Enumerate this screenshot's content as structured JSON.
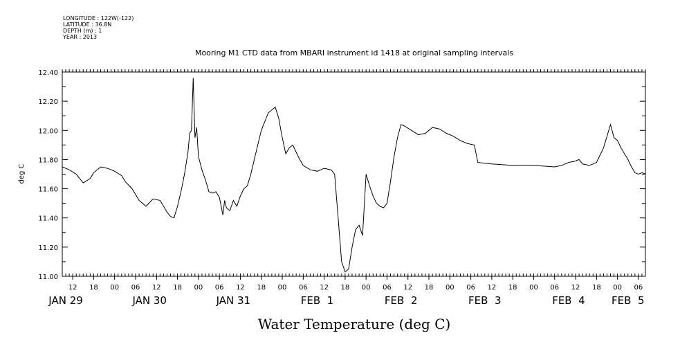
{
  "header": {
    "longitude": "LONGITUDE : 122W(-122)",
    "latitude": "LATITUDE : 36.8N",
    "depth": "DEPTH (m) : 1",
    "year": "YEAR : 2013"
  },
  "chart_data": {
    "type": "line",
    "title": "Mooring M1 CTD data from MBARI instrument id 1418 at original sampling intervals",
    "xlabel": "Water Temperature (deg C)",
    "ylabel": "deg C",
    "ylim": [
      11.0,
      12.4
    ],
    "yticks": [
      "11.00",
      "11.20",
      "11.40",
      "11.60",
      "11.80",
      "12.00",
      "12.20",
      "12.40"
    ],
    "xlim": [
      "2013-01-29T09:00",
      "2013-02-05T08:00"
    ],
    "hour_ticks": [
      {
        "t": "2013-01-29T12:00",
        "label": "12"
      },
      {
        "t": "2013-01-29T18:00",
        "label": "18"
      },
      {
        "t": "2013-01-30T00:00",
        "label": "00"
      },
      {
        "t": "2013-01-30T06:00",
        "label": "06"
      },
      {
        "t": "2013-01-30T12:00",
        "label": "12"
      },
      {
        "t": "2013-01-30T18:00",
        "label": "18"
      },
      {
        "t": "2013-01-31T00:00",
        "label": "00"
      },
      {
        "t": "2013-01-31T06:00",
        "label": "06"
      },
      {
        "t": "2013-01-31T12:00",
        "label": "12"
      },
      {
        "t": "2013-01-31T18:00",
        "label": "18"
      },
      {
        "t": "2013-02-01T00:00",
        "label": "00"
      },
      {
        "t": "2013-02-01T06:00",
        "label": "06"
      },
      {
        "t": "2013-02-01T12:00",
        "label": "12"
      },
      {
        "t": "2013-02-01T18:00",
        "label": "18"
      },
      {
        "t": "2013-02-02T00:00",
        "label": "00"
      },
      {
        "t": "2013-02-02T06:00",
        "label": "06"
      },
      {
        "t": "2013-02-02T12:00",
        "label": "12"
      },
      {
        "t": "2013-02-02T18:00",
        "label": "18"
      },
      {
        "t": "2013-02-03T00:00",
        "label": "00"
      },
      {
        "t": "2013-02-03T06:00",
        "label": "06"
      },
      {
        "t": "2013-02-03T12:00",
        "label": "12"
      },
      {
        "t": "2013-02-03T18:00",
        "label": "18"
      },
      {
        "t": "2013-02-04T00:00",
        "label": "00"
      },
      {
        "t": "2013-02-04T06:00",
        "label": "06"
      },
      {
        "t": "2013-02-04T12:00",
        "label": "12"
      },
      {
        "t": "2013-02-04T18:00",
        "label": "18"
      },
      {
        "t": "2013-02-05T00:00",
        "label": "00"
      },
      {
        "t": "2013-02-05T06:00",
        "label": "06"
      }
    ],
    "day_labels": [
      {
        "label": "JAN 29",
        "t": "2013-01-29T10:00"
      },
      {
        "label": "JAN 30",
        "t": "2013-01-30T10:00"
      },
      {
        "label": "JAN 31",
        "t": "2013-01-31T10:00"
      },
      {
        "label": "FEB  1",
        "t": "2013-02-01T10:00"
      },
      {
        "label": "FEB  2",
        "t": "2013-02-02T10:00"
      },
      {
        "label": "FEB  3",
        "t": "2013-02-03T10:00"
      },
      {
        "label": "FEB  4",
        "t": "2013-02-04T10:00"
      },
      {
        "label": "FEB  5",
        "t": "2013-02-05T03:00"
      }
    ],
    "grid": false,
    "series": [
      {
        "color": "#000000",
        "x": [
          "2013-01-29T09:00",
          "2013-01-29T11:00",
          "2013-01-29T13:00",
          "2013-01-29T14:00",
          "2013-01-29T15:00",
          "2013-01-29T17:00",
          "2013-01-29T18:00",
          "2013-01-29T20:00",
          "2013-01-29T22:00",
          "2013-01-30T00:00",
          "2013-01-30T02:00",
          "2013-01-30T03:00",
          "2013-01-30T05:00",
          "2013-01-30T06:00",
          "2013-01-30T07:00",
          "2013-01-30T09:00",
          "2013-01-30T11:00",
          "2013-01-30T13:00",
          "2013-01-30T14:00",
          "2013-01-30T15:00",
          "2013-01-30T16:00",
          "2013-01-30T17:00",
          "2013-01-30T18:00",
          "2013-01-30T19:00",
          "2013-01-30T20:00",
          "2013-01-30T21:00",
          "2013-01-30T21:30",
          "2013-01-30T22:00",
          "2013-01-30T22:30",
          "2013-01-30T23:00",
          "2013-01-30T23:30",
          "2013-01-31T00:00",
          "2013-01-31T01:00",
          "2013-01-31T02:00",
          "2013-01-31T03:00",
          "2013-01-31T04:00",
          "2013-01-31T05:00",
          "2013-01-31T06:00",
          "2013-01-31T07:00",
          "2013-01-31T07:30",
          "2013-01-31T08:00",
          "2013-01-31T09:00",
          "2013-01-31T10:00",
          "2013-01-31T11:00",
          "2013-01-31T12:00",
          "2013-01-31T13:00",
          "2013-01-31T14:00",
          "2013-01-31T15:00",
          "2013-01-31T16:00",
          "2013-01-31T18:00",
          "2013-01-31T20:00",
          "2013-01-31T22:00",
          "2013-01-31T23:00",
          "2013-02-01T00:00",
          "2013-02-01T01:00",
          "2013-02-01T02:00",
          "2013-02-01T03:00",
          "2013-02-01T04:00",
          "2013-02-01T05:00",
          "2013-02-01T06:00",
          "2013-02-01T08:00",
          "2013-02-01T10:00",
          "2013-02-01T12:00",
          "2013-02-01T14:00",
          "2013-02-01T15:00",
          "2013-02-01T16:00",
          "2013-02-01T17:00",
          "2013-02-01T18:00",
          "2013-02-01T19:00",
          "2013-02-01T20:00",
          "2013-02-01T21:00",
          "2013-02-01T22:00",
          "2013-02-01T23:00",
          "2013-02-02T00:00",
          "2013-02-02T01:00",
          "2013-02-02T02:00",
          "2013-02-02T03:00",
          "2013-02-02T04:00",
          "2013-02-02T05:00",
          "2013-02-02T06:00",
          "2013-02-02T07:00",
          "2013-02-02T08:00",
          "2013-02-02T09:00",
          "2013-02-02T10:00",
          "2013-02-02T11:00",
          "2013-02-02T13:00",
          "2013-02-02T15:00",
          "2013-02-02T17:00",
          "2013-02-02T19:00",
          "2013-02-02T21:00",
          "2013-02-02T23:00",
          "2013-02-03T01:00",
          "2013-02-03T03:00",
          "2013-02-03T05:00",
          "2013-02-03T07:00",
          "2013-02-03T08:00",
          "2013-02-03T12:00",
          "2013-02-03T18:00",
          "2013-02-04T00:00",
          "2013-02-04T06:00",
          "2013-02-04T08:00",
          "2013-02-04T10:00",
          "2013-02-04T12:00",
          "2013-02-04T13:00",
          "2013-02-04T14:00",
          "2013-02-04T16:00",
          "2013-02-04T18:00",
          "2013-02-04T20:00",
          "2013-02-04T21:00",
          "2013-02-04T22:00",
          "2013-02-04T23:00",
          "2013-02-05T00:00",
          "2013-02-05T01:00",
          "2013-02-05T02:00",
          "2013-02-05T03:00",
          "2013-02-05T04:00",
          "2013-02-05T05:00",
          "2013-02-05T06:00",
          "2013-02-05T07:00",
          "2013-02-05T08:00"
        ],
        "values": [
          11.75,
          11.73,
          11.7,
          11.67,
          11.64,
          11.67,
          11.71,
          11.75,
          11.74,
          11.72,
          11.69,
          11.65,
          11.6,
          11.56,
          11.52,
          11.48,
          11.53,
          11.52,
          11.48,
          11.44,
          11.41,
          11.4,
          11.48,
          11.58,
          11.7,
          11.85,
          11.98,
          12.0,
          12.36,
          11.95,
          12.02,
          11.82,
          11.73,
          11.66,
          11.58,
          11.57,
          11.58,
          11.54,
          11.42,
          11.52,
          11.47,
          11.45,
          11.52,
          11.48,
          11.55,
          11.6,
          11.62,
          11.7,
          11.8,
          12.0,
          12.12,
          12.16,
          12.08,
          11.95,
          11.84,
          11.88,
          11.9,
          11.85,
          11.8,
          11.76,
          11.73,
          11.72,
          11.74,
          11.73,
          11.7,
          11.4,
          11.1,
          11.03,
          11.05,
          11.2,
          11.32,
          11.35,
          11.28,
          11.7,
          11.62,
          11.55,
          11.5,
          11.48,
          11.47,
          11.5,
          11.65,
          11.82,
          11.95,
          12.04,
          12.03,
          12.0,
          11.97,
          11.98,
          12.02,
          12.01,
          11.98,
          11.96,
          11.93,
          11.91,
          11.9,
          11.78,
          11.77,
          11.76,
          11.76,
          11.75,
          11.76,
          11.78,
          11.79,
          11.8,
          11.77,
          11.76,
          11.78,
          11.88,
          11.96,
          12.04,
          11.95,
          11.93,
          11.88,
          11.84,
          11.8,
          11.75,
          11.71,
          11.7,
          11.71,
          11.7
        ]
      }
    ]
  }
}
